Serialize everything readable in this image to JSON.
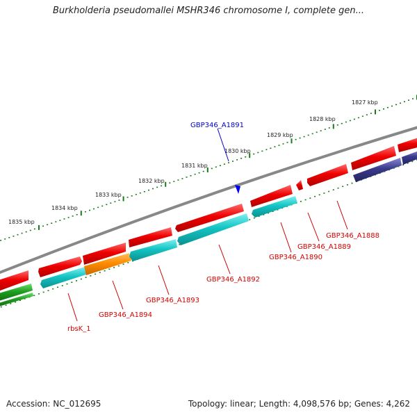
{
  "title": "Burkholderia pseudomallei MSHR346 chromosome I, complete gen...",
  "footer": {
    "accession": "Accession: NC_012695",
    "summary": "Topology: linear; Length: 4,098,576 bp; Genes: 4,262"
  },
  "colors": {
    "backbone": "#888888",
    "scale_ticks": "#1a7a1a",
    "red_gene": "#ee0000",
    "cyan_gene": "#14c4c4",
    "orange_gene": "#ff8c00",
    "navy_gene": "#3a3a8c",
    "green_gene": "#1e9e1e",
    "label_red": "#d40000",
    "label_blue": "#0000cc"
  },
  "scale_labels": [
    "1835 kbp",
    "1834 kbp",
    "1833 kbp",
    "1832 kbp",
    "1831 kbp",
    "1830 kbp",
    "1829 kbp",
    "1828 kbp",
    "1827 kbp"
  ],
  "gene_labels": [
    {
      "text": "rbsK_1",
      "color": "red"
    },
    {
      "text": "GBP346_A1894",
      "color": "red"
    },
    {
      "text": "GBP346_A1893",
      "color": "red"
    },
    {
      "text": "GBP346_A1892",
      "color": "red"
    },
    {
      "text": "GBP346_A1890",
      "color": "red"
    },
    {
      "text": "GBP346_A1889",
      "color": "red"
    },
    {
      "text": "GBP346_A1888",
      "color": "red"
    },
    {
      "text": "GBP346_A1891",
      "color": "blue"
    }
  ]
}
